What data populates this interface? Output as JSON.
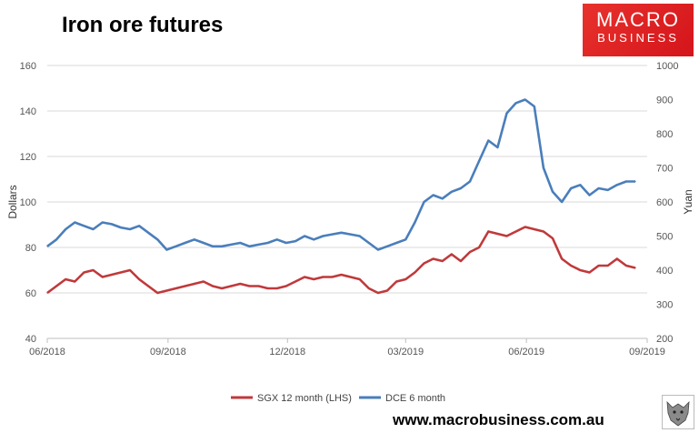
{
  "header": {
    "title": "Iron ore futures"
  },
  "logo": {
    "line1": "MACRO",
    "line2": "BUSINESS"
  },
  "footer": {
    "website": "www.macrobusiness.com.au"
  },
  "colors": {
    "sgx": "#c0393b",
    "dce": "#4a7ebb",
    "grid": "#d9d9d9",
    "logo": "#e02a27"
  },
  "chart_data": {
    "type": "line",
    "title": "Iron ore futures",
    "ylabel": "Dollars",
    "y2label": "Yuan",
    "ylim": [
      40,
      160
    ],
    "y2lim": [
      200,
      1000
    ],
    "yticks": [
      40,
      60,
      80,
      100,
      120,
      140,
      160
    ],
    "y2ticks": [
      200,
      300,
      400,
      500,
      600,
      700,
      800,
      900,
      1000
    ],
    "xlim": [
      "2018-06-01",
      "2019-09-01"
    ],
    "xticks": [
      "06/2018",
      "09/2018",
      "12/2018",
      "03/2019",
      "06/2019",
      "09/2019"
    ],
    "grid": true,
    "legend_position": "bottom",
    "series": [
      {
        "name": "SGX 12 month (LHS)",
        "axis": "left",
        "x": [
          "2018-06-01",
          "2018-06-08",
          "2018-06-15",
          "2018-06-22",
          "2018-06-29",
          "2018-07-06",
          "2018-07-13",
          "2018-07-20",
          "2018-07-27",
          "2018-08-03",
          "2018-08-10",
          "2018-08-17",
          "2018-08-24",
          "2018-08-31",
          "2018-09-07",
          "2018-09-14",
          "2018-09-21",
          "2018-09-28",
          "2018-10-05",
          "2018-10-12",
          "2018-10-19",
          "2018-10-26",
          "2018-11-02",
          "2018-11-09",
          "2018-11-16",
          "2018-11-23",
          "2018-11-30",
          "2018-12-07",
          "2018-12-14",
          "2018-12-21",
          "2018-12-28",
          "2019-01-04",
          "2019-01-11",
          "2019-01-18",
          "2019-01-25",
          "2019-02-01",
          "2019-02-08",
          "2019-02-15",
          "2019-02-22",
          "2019-03-01",
          "2019-03-08",
          "2019-03-15",
          "2019-03-22",
          "2019-03-29",
          "2019-04-05",
          "2019-04-12",
          "2019-04-19",
          "2019-04-26",
          "2019-05-03",
          "2019-05-10",
          "2019-05-17",
          "2019-05-24",
          "2019-05-31",
          "2019-06-07",
          "2019-06-14",
          "2019-06-21",
          "2019-06-28",
          "2019-07-05",
          "2019-07-12",
          "2019-07-19",
          "2019-07-26",
          "2019-08-02",
          "2019-08-09",
          "2019-08-16",
          "2019-08-23"
        ],
        "values": [
          60,
          63,
          66,
          65,
          69,
          70,
          67,
          68,
          69,
          70,
          66,
          63,
          60,
          61,
          62,
          63,
          64,
          65,
          63,
          62,
          63,
          64,
          63,
          63,
          62,
          62,
          63,
          65,
          67,
          66,
          67,
          67,
          68,
          67,
          66,
          62,
          60,
          61,
          65,
          66,
          69,
          73,
          75,
          74,
          77,
          74,
          78,
          80,
          87,
          86,
          85,
          87,
          89,
          88,
          87,
          84,
          75,
          72,
          70,
          69,
          72,
          72,
          75,
          72,
          71
        ]
      },
      {
        "name": "DCE 6 month",
        "axis": "right",
        "x": [
          "2018-06-01",
          "2018-06-08",
          "2018-06-15",
          "2018-06-22",
          "2018-06-29",
          "2018-07-06",
          "2018-07-13",
          "2018-07-20",
          "2018-07-27",
          "2018-08-03",
          "2018-08-10",
          "2018-08-17",
          "2018-08-24",
          "2018-08-31",
          "2018-09-07",
          "2018-09-14",
          "2018-09-21",
          "2018-09-28",
          "2018-10-05",
          "2018-10-12",
          "2018-10-19",
          "2018-10-26",
          "2018-11-02",
          "2018-11-09",
          "2018-11-16",
          "2018-11-23",
          "2018-11-30",
          "2018-12-07",
          "2018-12-14",
          "2018-12-21",
          "2018-12-28",
          "2019-01-04",
          "2019-01-11",
          "2019-01-18",
          "2019-01-25",
          "2019-02-01",
          "2019-02-08",
          "2019-02-15",
          "2019-02-22",
          "2019-03-01",
          "2019-03-08",
          "2019-03-15",
          "2019-03-22",
          "2019-03-29",
          "2019-04-05",
          "2019-04-12",
          "2019-04-19",
          "2019-04-26",
          "2019-05-03",
          "2019-05-10",
          "2019-05-17",
          "2019-05-24",
          "2019-05-31",
          "2019-06-07",
          "2019-06-14",
          "2019-06-21",
          "2019-06-28",
          "2019-07-05",
          "2019-07-12",
          "2019-07-19",
          "2019-07-26",
          "2019-08-02",
          "2019-08-09",
          "2019-08-16",
          "2019-08-23"
        ],
        "values": [
          470,
          490,
          520,
          540,
          530,
          520,
          540,
          535,
          525,
          520,
          530,
          510,
          490,
          460,
          470,
          480,
          490,
          480,
          470,
          470,
          475,
          480,
          470,
          475,
          480,
          490,
          480,
          485,
          500,
          490,
          500,
          505,
          510,
          505,
          500,
          480,
          460,
          470,
          480,
          490,
          540,
          600,
          620,
          610,
          630,
          640,
          660,
          720,
          780,
          760,
          860,
          890,
          900,
          880,
          700,
          630,
          600,
          640,
          650,
          620,
          640,
          635,
          650,
          660,
          660
        ]
      }
    ]
  }
}
